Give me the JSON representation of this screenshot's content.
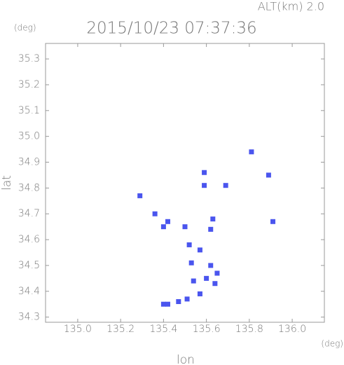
{
  "chart_data": {
    "type": "scatter",
    "title": "2015/10/23 07:37:36",
    "subtitle": "ALT(km) 2.0",
    "x_label": "lon",
    "y_label": "lat",
    "x_unit": "(deg)",
    "y_unit": "(deg)",
    "x": [
      135.81,
      135.89,
      135.59,
      135.59,
      135.29,
      135.69,
      135.36,
      135.63,
      135.91,
      135.42,
      135.4,
      135.5,
      135.62,
      135.52,
      135.57,
      135.53,
      135.62,
      135.6,
      135.64,
      135.65,
      135.54,
      135.57,
      135.51,
      135.47,
      135.42,
      135.4
    ],
    "values": [
      34.94,
      34.85,
      34.86,
      34.81,
      34.77,
      34.81,
      34.7,
      34.68,
      34.67,
      34.67,
      34.65,
      34.65,
      34.64,
      34.58,
      34.56,
      34.51,
      34.5,
      34.45,
      34.43,
      34.47,
      34.44,
      34.39,
      34.37,
      34.36,
      34.35,
      34.35
    ],
    "color": "#4a55ee",
    "xlim": [
      134.85,
      136.15
    ],
    "ylim": [
      34.28,
      35.36
    ],
    "xticks": [
      {
        "value": 135.0,
        "label": "135.0"
      },
      135.2,
      135.4,
      135.6,
      135.8,
      {
        "value": 136.0,
        "label": "136.0"
      }
    ],
    "yticks": [
      34.3,
      34.4,
      34.5,
      34.6,
      34.7,
      34.8,
      34.9,
      {
        "value": 35.0,
        "label": "35.0"
      },
      35.1,
      35.2,
      35.3
    ],
    "grid": false
  }
}
